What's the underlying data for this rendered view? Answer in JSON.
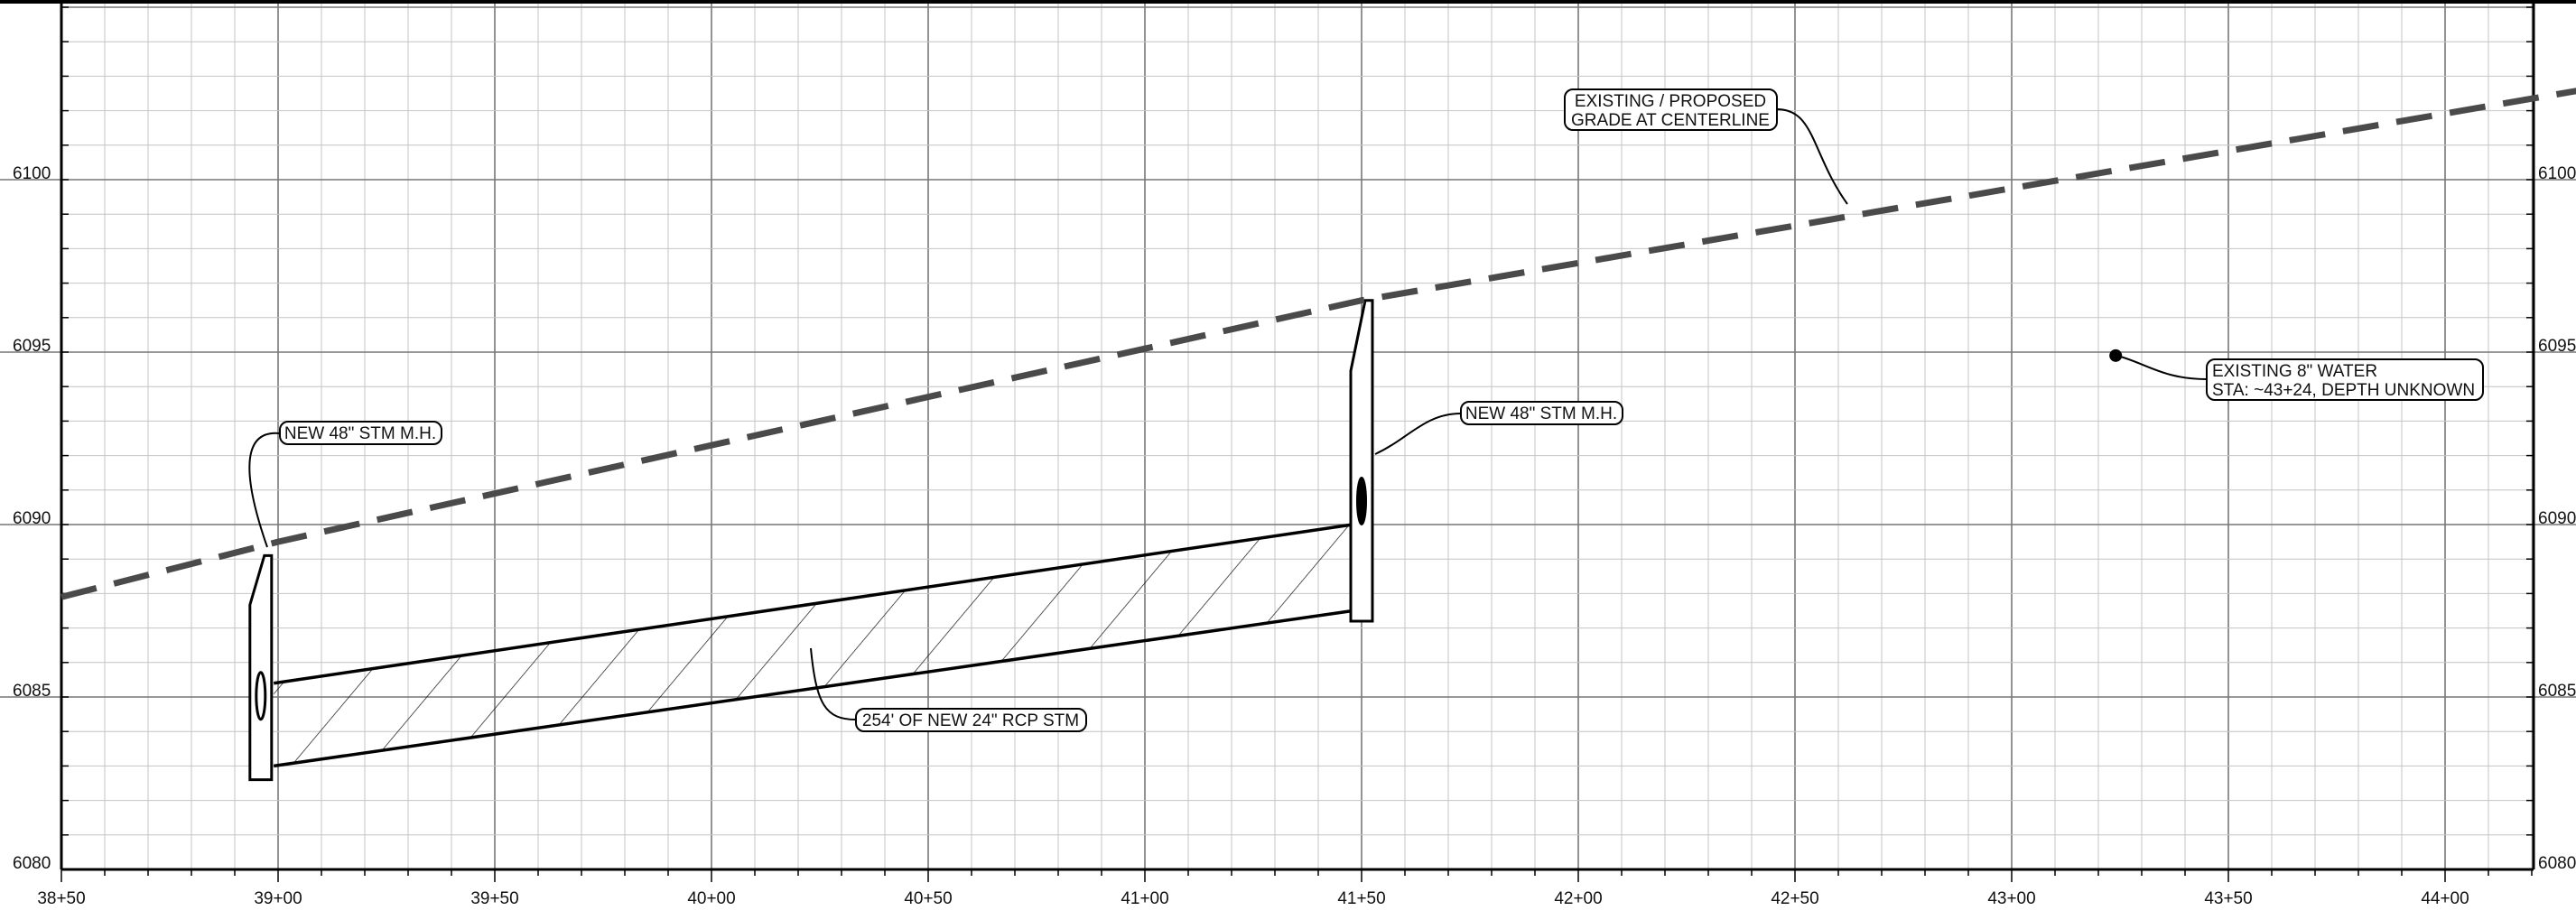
{
  "drawing": {
    "elev_ticks": [
      "6080",
      "6085",
      "6090",
      "6095",
      "6100"
    ],
    "elev_ticks_right": [
      "6080",
      "6085",
      "6090",
      "6095",
      "6100"
    ],
    "station_ticks": [
      "38+50",
      "39+00",
      "39+50",
      "40+00",
      "40+50",
      "41+00",
      "41+50",
      "42+00",
      "42+50",
      "43+00",
      "43+50",
      "44+00"
    ]
  },
  "chart_data": {
    "type": "line",
    "title": "",
    "xlabel": "",
    "ylabel": "",
    "x_unit": "station (ft)",
    "xlim": [
      "38+50",
      "44+50"
    ],
    "ylim": [
      6080,
      6104
    ],
    "grid": true,
    "series": [
      {
        "style": "dashed",
        "points": [
          {
            "station": "38+50",
            "elev": 6087.9
          },
          {
            "station": "39+00",
            "elev": 6089.5
          },
          {
            "station": "41+50",
            "elev": 6096.5
          },
          {
            "station": "44+50",
            "elev": 6103.0
          }
        ]
      }
    ],
    "manholes": [
      {
        "station": "38+96",
        "top_elev": 6089.1,
        "bottom_elev": 6082.6
      },
      {
        "station": "41+50",
        "top_elev": 6096.5,
        "bottom_elev": 6087.2
      }
    ],
    "pipe": {
      "from_station": "38+99",
      "to_station": "41+50",
      "top_start_elev": 6085.4,
      "top_end_elev": 6090.0,
      "invert_start_elev": 6083.0,
      "invert_end_elev": 6087.5
    },
    "points": [
      {
        "station": "43+24",
        "elev": 6094.9
      }
    ]
  },
  "annotations": {
    "grade": [
      "EXISTING / PROPOSED",
      "GRADE AT CENTERLINE"
    ],
    "mh_left": [
      "NEW 48\" STM M.H."
    ],
    "mh_right": [
      "NEW 48\" STM M.H."
    ],
    "water": [
      "EXISTING 8\" WATER",
      "STA: ~43+24, DEPTH UNKNOWN"
    ],
    "pipe": [
      "254' OF NEW 24\" RCP STM"
    ]
  },
  "colors": {
    "background": "#ffffff",
    "major_grid": "#777777",
    "minor_grid": "#c4c4c4",
    "frame": "#000000",
    "grade_line": "#4a4a4a"
  }
}
